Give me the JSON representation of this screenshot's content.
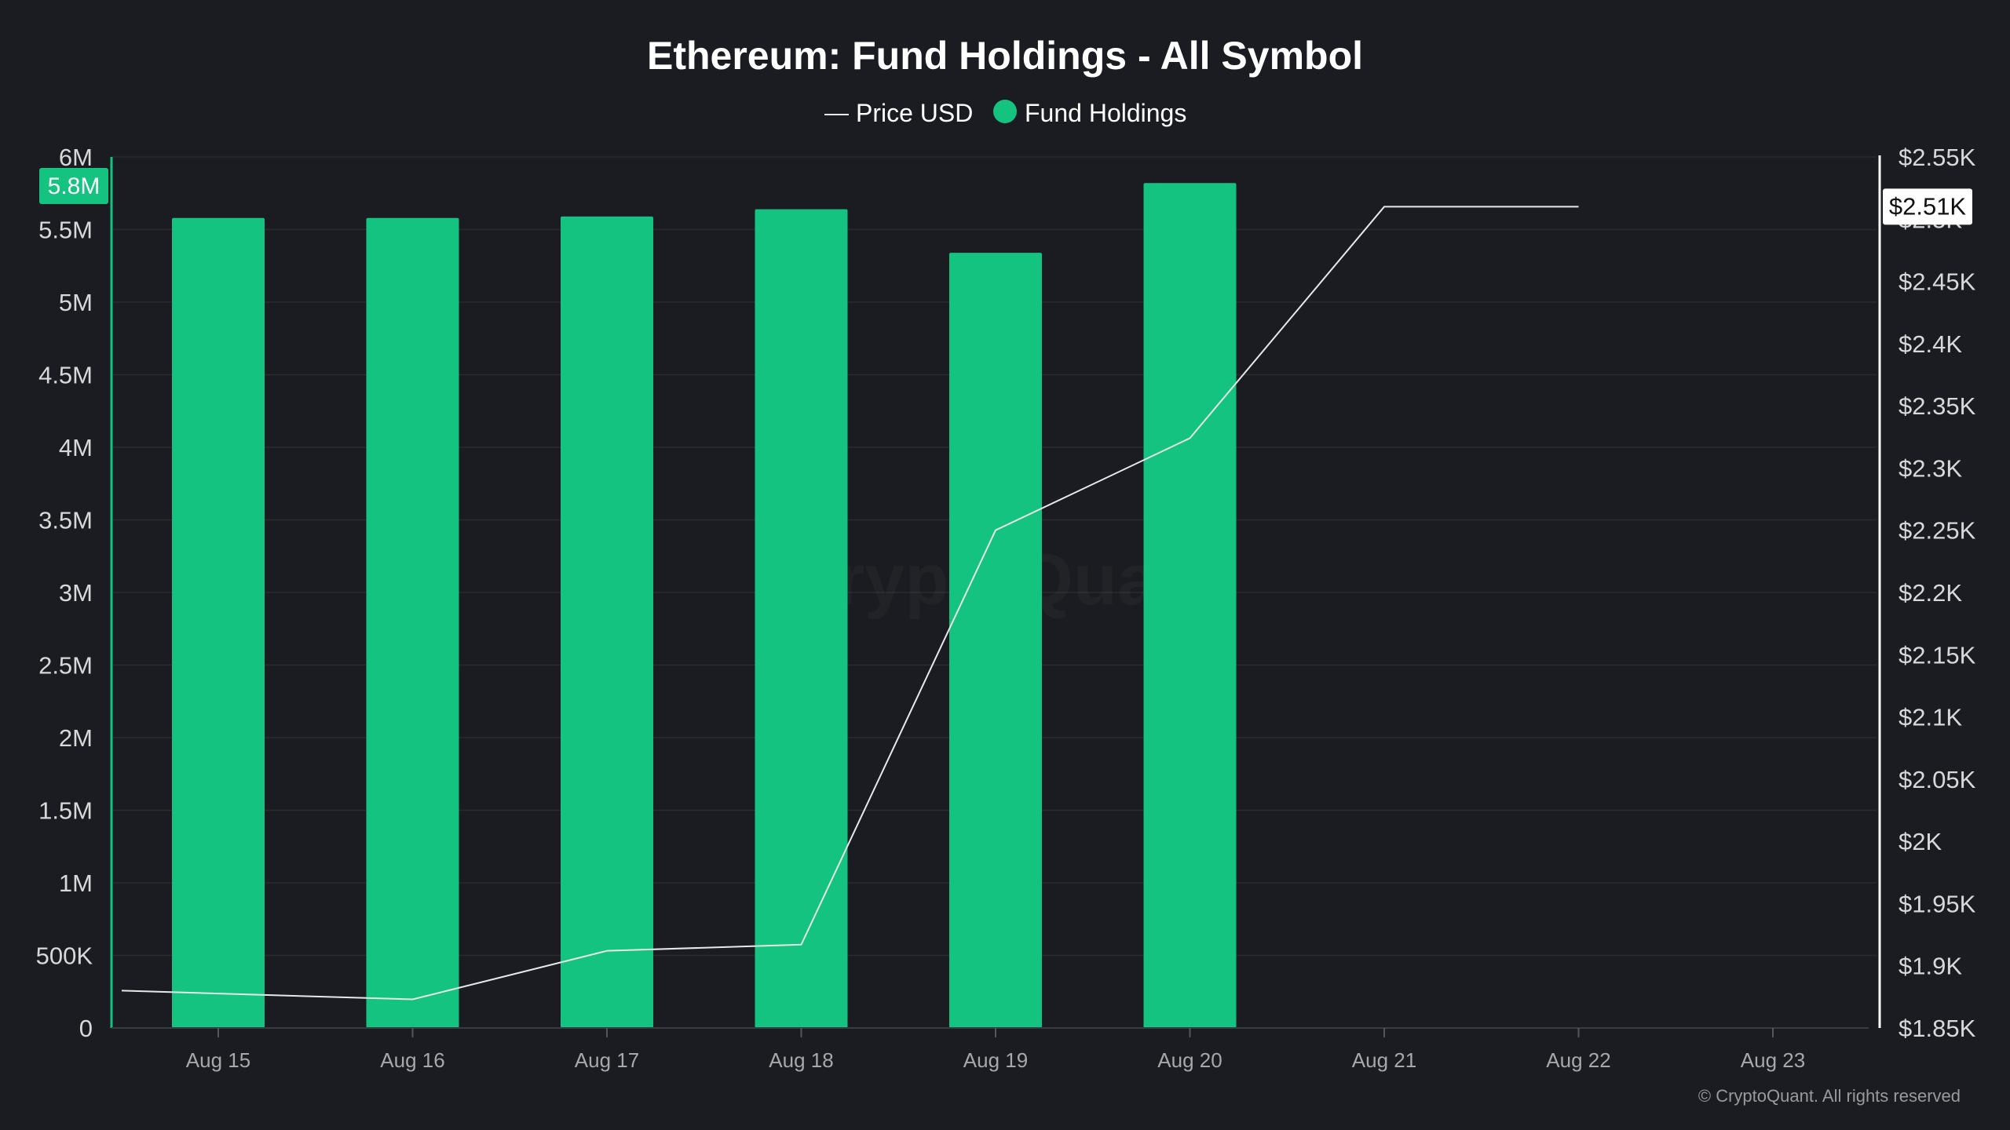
{
  "chart_data": {
    "type": "bar",
    "title": "Ethereum: Fund Holdings - All Symbol",
    "legend": [
      {
        "label": "Price USD",
        "marker": "line",
        "color": "#e8e8e8"
      },
      {
        "label": "Fund Holdings",
        "marker": "dot",
        "color": "#13c37f"
      }
    ],
    "legend_position": "top-center",
    "categories": [
      "Aug 15",
      "Aug 16",
      "Aug 17",
      "Aug 18",
      "Aug 19",
      "Aug 20",
      "Aug 21",
      "Aug 22",
      "Aug 23"
    ],
    "series": [
      {
        "name": "Fund Holdings",
        "type": "bar",
        "axis": "left",
        "color": "#13c37f",
        "values": [
          5580000,
          5580000,
          5590000,
          5640000,
          5340000,
          5820000,
          null,
          null,
          null
        ]
      },
      {
        "name": "Price USD",
        "type": "line",
        "axis": "right",
        "color": "#e8e8e8",
        "values": [
          1880,
          1873,
          1912,
          1917,
          2250,
          2324,
          2510,
          2510,
          null
        ]
      }
    ],
    "left_axis": {
      "min": 0,
      "max": 6000000,
      "ticks": [
        {
          "value": 0,
          "label": "0"
        },
        {
          "value": 500000,
          "label": "500K"
        },
        {
          "value": 1000000,
          "label": "1M"
        },
        {
          "value": 1500000,
          "label": "1.5M"
        },
        {
          "value": 2000000,
          "label": "2M"
        },
        {
          "value": 2500000,
          "label": "2.5M"
        },
        {
          "value": 3000000,
          "label": "3M"
        },
        {
          "value": 3500000,
          "label": "3.5M"
        },
        {
          "value": 4000000,
          "label": "4M"
        },
        {
          "value": 4500000,
          "label": "4.5M"
        },
        {
          "value": 5000000,
          "label": "5M"
        },
        {
          "value": 5500000,
          "label": "5.5M"
        },
        {
          "value": 6000000,
          "label": "6M"
        }
      ],
      "current_value": 5800000,
      "current_label": "5.8M"
    },
    "right_axis": {
      "ticks": [
        {
          "value": 1850,
          "label": "$1.85K"
        },
        {
          "value": 1900,
          "label": "$1.9K"
        },
        {
          "value": 1950,
          "label": "$1.95K"
        },
        {
          "value": 2000,
          "label": "$2K"
        },
        {
          "value": 2050,
          "label": "$2.05K"
        },
        {
          "value": 2100,
          "label": "$2.1K"
        },
        {
          "value": 2150,
          "label": "$2.15K"
        },
        {
          "value": 2200,
          "label": "$2.2K"
        },
        {
          "value": 2250,
          "label": "$2.25K"
        },
        {
          "value": 2300,
          "label": "$2.3K"
        },
        {
          "value": 2350,
          "label": "$2.35K"
        },
        {
          "value": 2400,
          "label": "$2.4K"
        },
        {
          "value": 2450,
          "label": "$2.45K"
        },
        {
          "value": 2500,
          "label": "$2.5K"
        },
        {
          "value": 2550,
          "label": "$2.55K"
        }
      ],
      "current_value": 2510,
      "current_label": "$2.51K"
    },
    "grid": true,
    "watermark": "CryptoQuant",
    "copyright": "© CryptoQuant. All rights reserved",
    "colors": {
      "background": "#1b1c21",
      "grid": "#2a2b31",
      "axis_text": "#d8d8d8",
      "x_axis_text": "#a8a8ab",
      "bar": "#13c37f",
      "line": "#e8e8e8",
      "left_axis_line": "#13c37f",
      "right_axis_line": "#ffffff"
    }
  }
}
